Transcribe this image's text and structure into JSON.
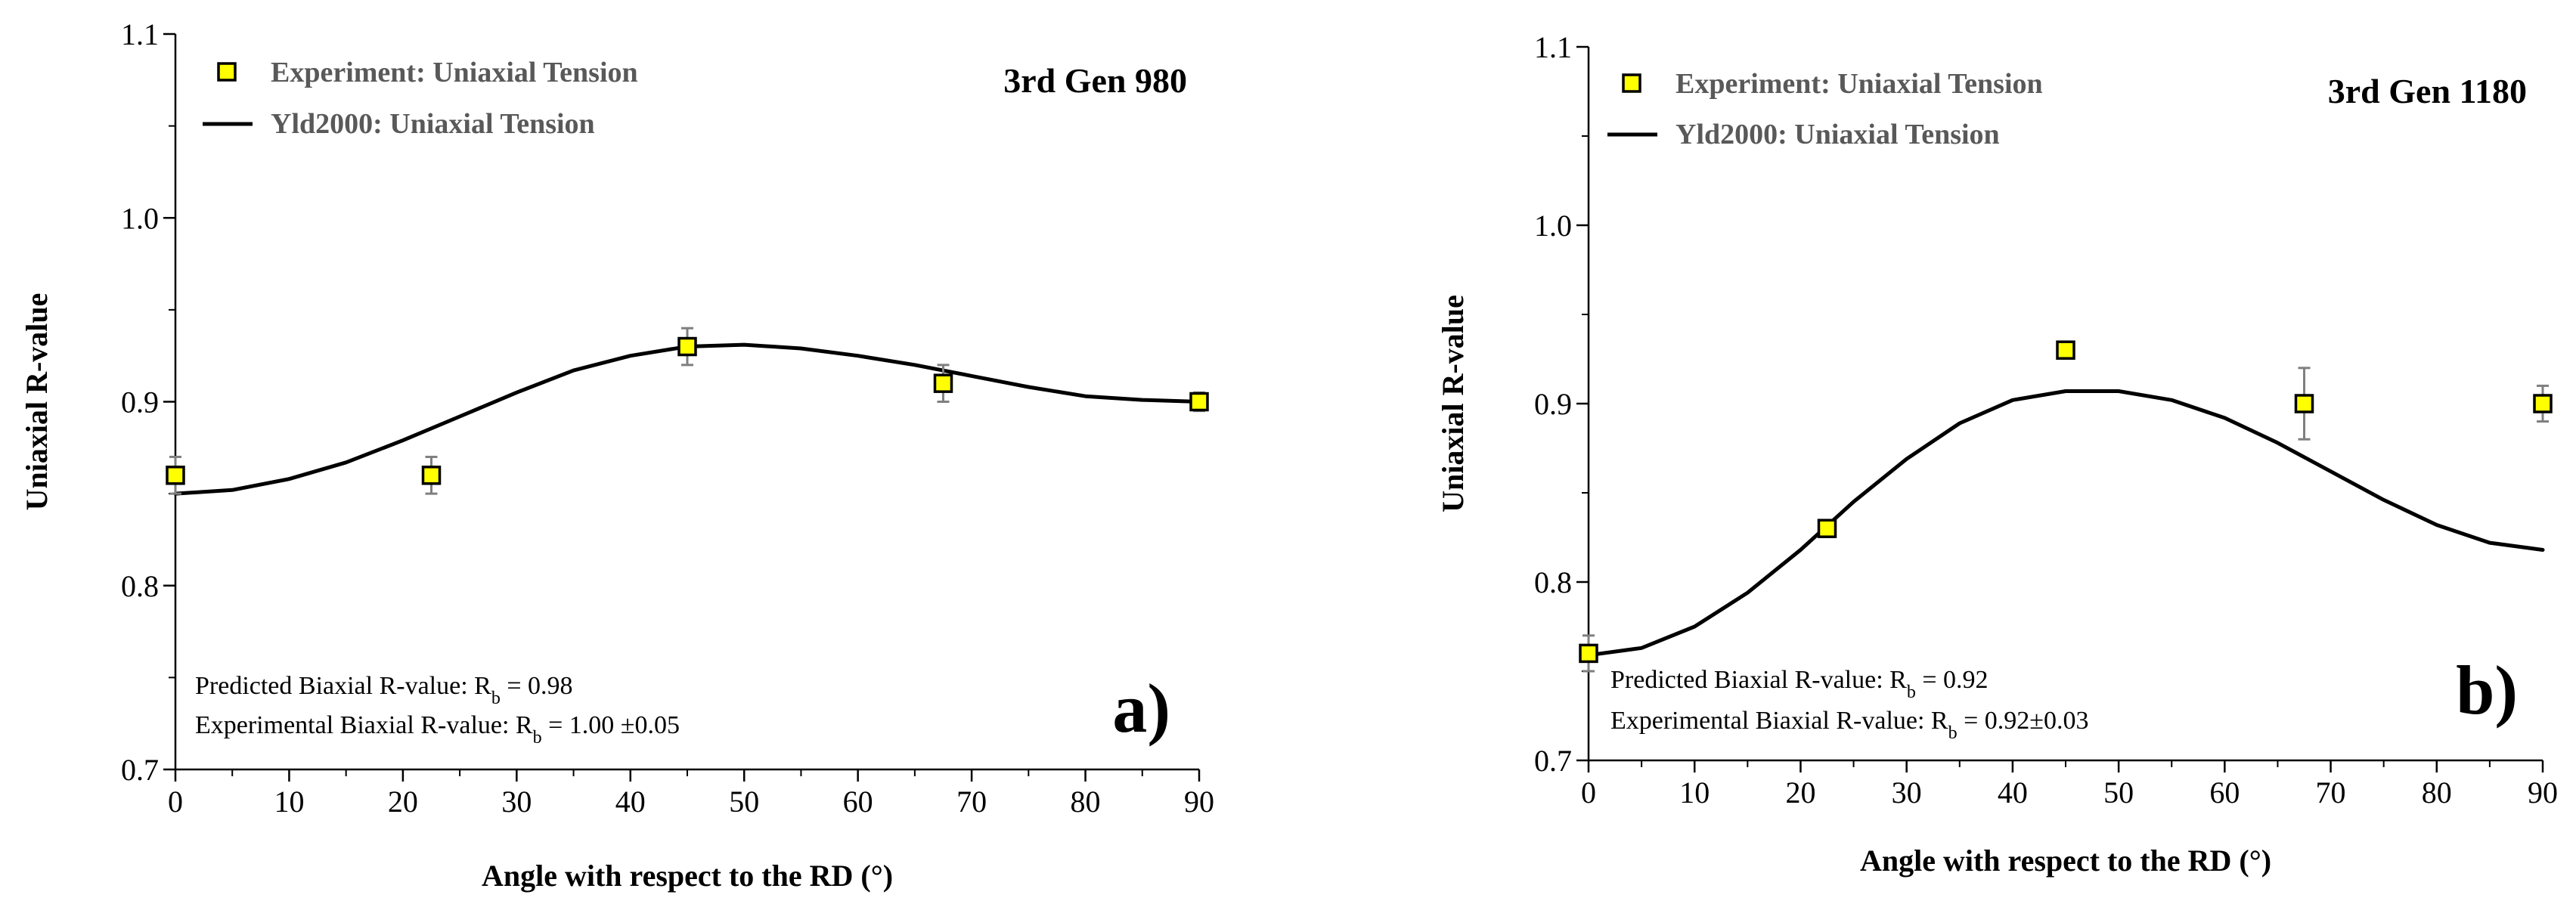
{
  "chart_data": [
    {
      "type": "scatter",
      "panel_label": "a)",
      "title": "3rd Gen 980",
      "xlabel": "Angle with respect to the RD (°)",
      "ylabel": "Uniaxial R-value",
      "xlim": [
        0,
        90
      ],
      "ylim": [
        0.7,
        1.1
      ],
      "xticks": [
        "0",
        "10",
        "20",
        "30",
        "40",
        "50",
        "60",
        "70",
        "80",
        "90"
      ],
      "yticks": [
        "0.7",
        "0.8",
        "0.9",
        "1.0",
        "1.1"
      ],
      "legend": {
        "placement": "top-left",
        "experiment_label": "Experiment: Uniaxial Tension",
        "model_label": "Yld2000: Uniaxial Tension"
      },
      "experiment": {
        "name": "Experiment: Uniaxial Tension",
        "x": [
          0,
          22.5,
          45,
          67.5,
          90
        ],
        "y": [
          0.86,
          0.86,
          0.93,
          0.91,
          0.9
        ],
        "err": [
          0.01,
          0.01,
          0.01,
          0.01,
          0.005
        ]
      },
      "model": {
        "name": "Yld2000: Uniaxial Tension",
        "x": [
          0,
          5,
          10,
          15,
          20,
          25,
          30,
          35,
          40,
          45,
          50,
          55,
          60,
          65,
          70,
          75,
          80,
          85,
          90
        ],
        "y": [
          0.85,
          0.852,
          0.858,
          0.867,
          0.879,
          0.892,
          0.905,
          0.917,
          0.925,
          0.93,
          0.931,
          0.929,
          0.925,
          0.92,
          0.914,
          0.908,
          0.903,
          0.901,
          0.9
        ]
      },
      "annotations": {
        "predicted_prefix": "Predicted Biaxial R-value: R",
        "predicted_sub": "b",
        "predicted_value": " = 0.98",
        "experimental_prefix": "Experimental Biaxial R-value: R",
        "experimental_sub": "b",
        "experimental_value": " = 1.00 ±0.05"
      }
    },
    {
      "type": "scatter",
      "panel_label": "b)",
      "title": "3rd Gen 1180",
      "xlabel": "Angle with respect to the RD (°)",
      "ylabel": "Uniaxial R-value",
      "xlim": [
        0,
        90
      ],
      "ylim": [
        0.7,
        1.1
      ],
      "xticks": [
        "0",
        "10",
        "20",
        "30",
        "40",
        "50",
        "60",
        "70",
        "80",
        "90"
      ],
      "yticks": [
        "0.7",
        "0.8",
        "0.9",
        "1.0",
        "1.1"
      ],
      "legend": {
        "placement": "top-left",
        "experiment_label": "Experiment: Uniaxial Tension",
        "model_label": "Yld2000: Uniaxial Tension"
      },
      "experiment": {
        "name": "Experiment: Uniaxial Tension",
        "x": [
          0,
          22.5,
          45,
          67.5,
          90
        ],
        "y": [
          0.76,
          0.83,
          0.93,
          0.9,
          0.9
        ],
        "err": [
          0.01,
          0.003,
          0.003,
          0.02,
          0.01
        ]
      },
      "model": {
        "name": "Yld2000: Uniaxial Tension",
        "x": [
          0,
          5,
          10,
          15,
          20,
          25,
          30,
          35,
          40,
          45,
          50,
          55,
          60,
          65,
          70,
          75,
          80,
          85,
          90
        ],
        "y": [
          0.759,
          0.763,
          0.775,
          0.794,
          0.818,
          0.845,
          0.869,
          0.889,
          0.902,
          0.907,
          0.907,
          0.902,
          0.892,
          0.878,
          0.862,
          0.846,
          0.832,
          0.822,
          0.818
        ]
      },
      "annotations": {
        "predicted_prefix": "Predicted Biaxial R-value: R",
        "predicted_sub": "b",
        "predicted_value": " = 0.92",
        "experimental_prefix": "Experimental Biaxial R-value: R",
        "experimental_sub": "b",
        "experimental_value": " = 0.92±0.03"
      }
    }
  ],
  "style": {
    "marker_fill": "#FFFF00",
    "marker_stroke": "#000000",
    "line_color": "#000000",
    "errorbar_color": "#7f7f7f",
    "legend_text_color": "#595959"
  }
}
